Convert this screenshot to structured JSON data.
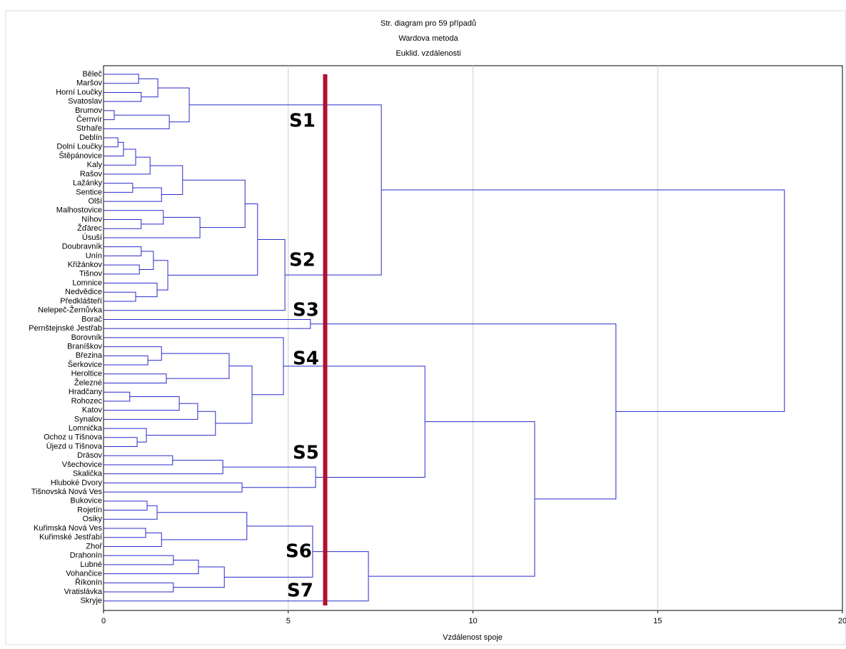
{
  "chart_data": {
    "type": "dendrogram",
    "title": "Str. diagram pro 59 případů",
    "subtitle": [
      "Wardova metoda",
      "Euklid. vzdálenosti"
    ],
    "xlabel": "Vzdálenost spoje",
    "xlim": [
      0,
      20
    ],
    "xticks": [
      0,
      5,
      10,
      15,
      20
    ],
    "grid": true,
    "color": "#2a2acc",
    "categories": [
      "Běleč",
      "Maršov",
      "Horní Loučky",
      "Svatoslav",
      "Brumov",
      "Černvír",
      "Strhaře",
      "Deblín",
      "Dolní Loučky",
      "Štěpánovice",
      "Kaly",
      "Rašov",
      "Lažánky",
      "Sentice",
      "Olší",
      "Malhostovice",
      "Níhov",
      "Žďárec",
      "Úsuší",
      "Doubravník",
      "Unín",
      "Křižánkov",
      "Tišnov",
      "Lomnice",
      "Nedvědice",
      "Předklášteří",
      "Nelepeč-Žernůvka",
      "Borač",
      "Pernštejnské Jestřab",
      "Borovník",
      "Braníškov",
      "Březina",
      "Šerkovice",
      "Heroltice",
      "Železné",
      "Hradčany",
      "Rohozec",
      "Katov",
      "Synalov",
      "Lomnička",
      "Ochoz u Tišnova",
      "Újezd u Tišnova",
      "Drásov",
      "Všechovice",
      "Skalička",
      "Hluboké Dvory",
      "Tišnovská Nová Ves",
      "Bukovice",
      "Rojetín",
      "Osiky",
      "Kuřimská Nová Ves",
      "Kuřimské Jestřabí",
      "Zhoř",
      "Drahonín",
      "Lubné",
      "Vohančice",
      "Říkonín",
      "Vratislávka",
      "Skryje"
    ],
    "merges": [
      [
        0,
        1,
        0.95
      ],
      [
        2,
        3,
        1.02
      ],
      [
        59,
        60,
        1.47
      ],
      [
        4,
        5,
        0.29
      ],
      [
        62,
        6,
        1.78
      ],
      [
        61,
        63,
        2.32
      ],
      [
        7,
        8,
        0.39
      ],
      [
        65,
        9,
        0.54
      ],
      [
        66,
        10,
        0.87
      ],
      [
        67,
        11,
        1.26
      ],
      [
        12,
        13,
        0.79
      ],
      [
        69,
        14,
        1.57
      ],
      [
        68,
        70,
        2.14
      ],
      [
        16,
        17,
        1.02
      ],
      [
        15,
        72,
        1.62
      ],
      [
        73,
        18,
        2.61
      ],
      [
        71,
        74,
        3.83
      ],
      [
        19,
        20,
        1.02
      ],
      [
        21,
        22,
        0.97
      ],
      [
        76,
        77,
        1.35
      ],
      [
        24,
        25,
        0.87
      ],
      [
        23,
        79,
        1.45
      ],
      [
        78,
        80,
        1.74
      ],
      [
        75,
        81,
        4.17
      ],
      [
        82,
        26,
        4.91
      ],
      [
        64,
        83,
        7.52
      ],
      [
        27,
        28,
        5.6
      ],
      [
        31,
        32,
        1.2
      ],
      [
        30,
        86,
        1.57
      ],
      [
        33,
        34,
        1.7
      ],
      [
        87,
        88,
        3.4
      ],
      [
        35,
        36,
        0.71
      ],
      [
        90,
        37,
        2.05
      ],
      [
        91,
        38,
        2.55
      ],
      [
        40,
        41,
        0.91
      ],
      [
        39,
        93,
        1.16
      ],
      [
        92,
        94,
        3.03
      ],
      [
        89,
        95,
        4.02
      ],
      [
        29,
        96,
        4.87
      ],
      [
        42,
        43,
        1.87
      ],
      [
        98,
        44,
        3.23
      ],
      [
        45,
        46,
        3.75
      ],
      [
        99,
        100,
        5.74
      ],
      [
        97,
        101,
        8.7
      ],
      [
        47,
        48,
        1.18
      ],
      [
        103,
        49,
        1.45
      ],
      [
        50,
        51,
        1.14
      ],
      [
        105,
        52,
        1.57
      ],
      [
        104,
        106,
        3.88
      ],
      [
        53,
        54,
        1.89
      ],
      [
        108,
        55,
        2.57
      ],
      [
        56,
        57,
        1.89
      ],
      [
        109,
        110,
        3.27
      ],
      [
        107,
        111,
        5.66
      ],
      [
        112,
        58,
        7.17
      ],
      [
        102,
        113,
        11.67
      ],
      [
        85,
        114,
        13.87
      ],
      [
        84,
        115,
        18.43
      ]
    ],
    "cut_distance": 6,
    "cut_color": "#b01030",
    "annotations": [
      "S1",
      "S2",
      "S3",
      "S4",
      "S5",
      "S6",
      "S7"
    ]
  }
}
